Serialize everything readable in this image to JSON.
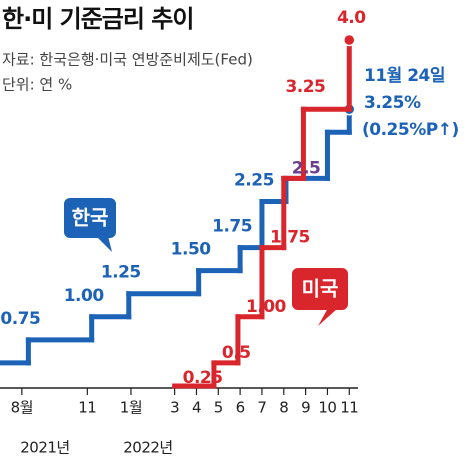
{
  "chart_data": {
    "type": "line",
    "step": true,
    "title": "한·미 기준금리 추이",
    "source": "자료: 한국은행·미국 연방준비제도(Fed)",
    "unit": "단위: 연 %",
    "xlim": [
      -1,
      15.4
    ],
    "ylim": [
      0.25,
      4.0
    ],
    "xticks": [
      {
        "value": 0,
        "label": "8월"
      },
      {
        "value": 3,
        "label": "11"
      },
      {
        "value": 5,
        "label": "1월"
      },
      {
        "value": 7,
        "label": "3"
      },
      {
        "value": 8,
        "label": "4"
      },
      {
        "value": 9,
        "label": "5"
      },
      {
        "value": 10,
        "label": "6"
      },
      {
        "value": 11,
        "label": "7"
      },
      {
        "value": 12,
        "label": "8"
      },
      {
        "value": 13,
        "label": "9"
      },
      {
        "value": 14,
        "label": "10"
      },
      {
        "value": 15,
        "label": "11"
      }
    ],
    "x_year_labels": [
      "2021년",
      "2022년"
    ],
    "series": [
      {
        "name": "한국",
        "color": "#1c63b7",
        "x": [
          -1,
          0.3,
          3.2,
          4.9,
          8.1,
          10,
          11,
          12.1,
          14,
          15
        ],
        "values": [
          0.5,
          0.75,
          1.0,
          1.25,
          1.5,
          1.75,
          2.25,
          2.5,
          3.0,
          3.25
        ],
        "value_labels": [
          null,
          "0.75",
          "1.00",
          "1.25",
          "1.50",
          "1.75",
          "2.25",
          null,
          null,
          null
        ]
      },
      {
        "name": "미국",
        "color": "#d9252c",
        "x": [
          7,
          8.8,
          9.9,
          11,
          12,
          12.9,
          15
        ],
        "values": [
          0.25,
          0.5,
          1.0,
          1.75,
          2.5,
          3.25,
          4.0
        ],
        "value_labels": [
          "0.25",
          "0.5",
          "1.00",
          "1.75",
          "2.5",
          "3.25",
          "4.0"
        ],
        "label_colors": [
          null,
          null,
          null,
          null,
          "#6a3d8f",
          null,
          null
        ]
      }
    ],
    "annotation": [
      "11월 24일",
      "3.25%",
      "(0.25%P↑)"
    ]
  }
}
